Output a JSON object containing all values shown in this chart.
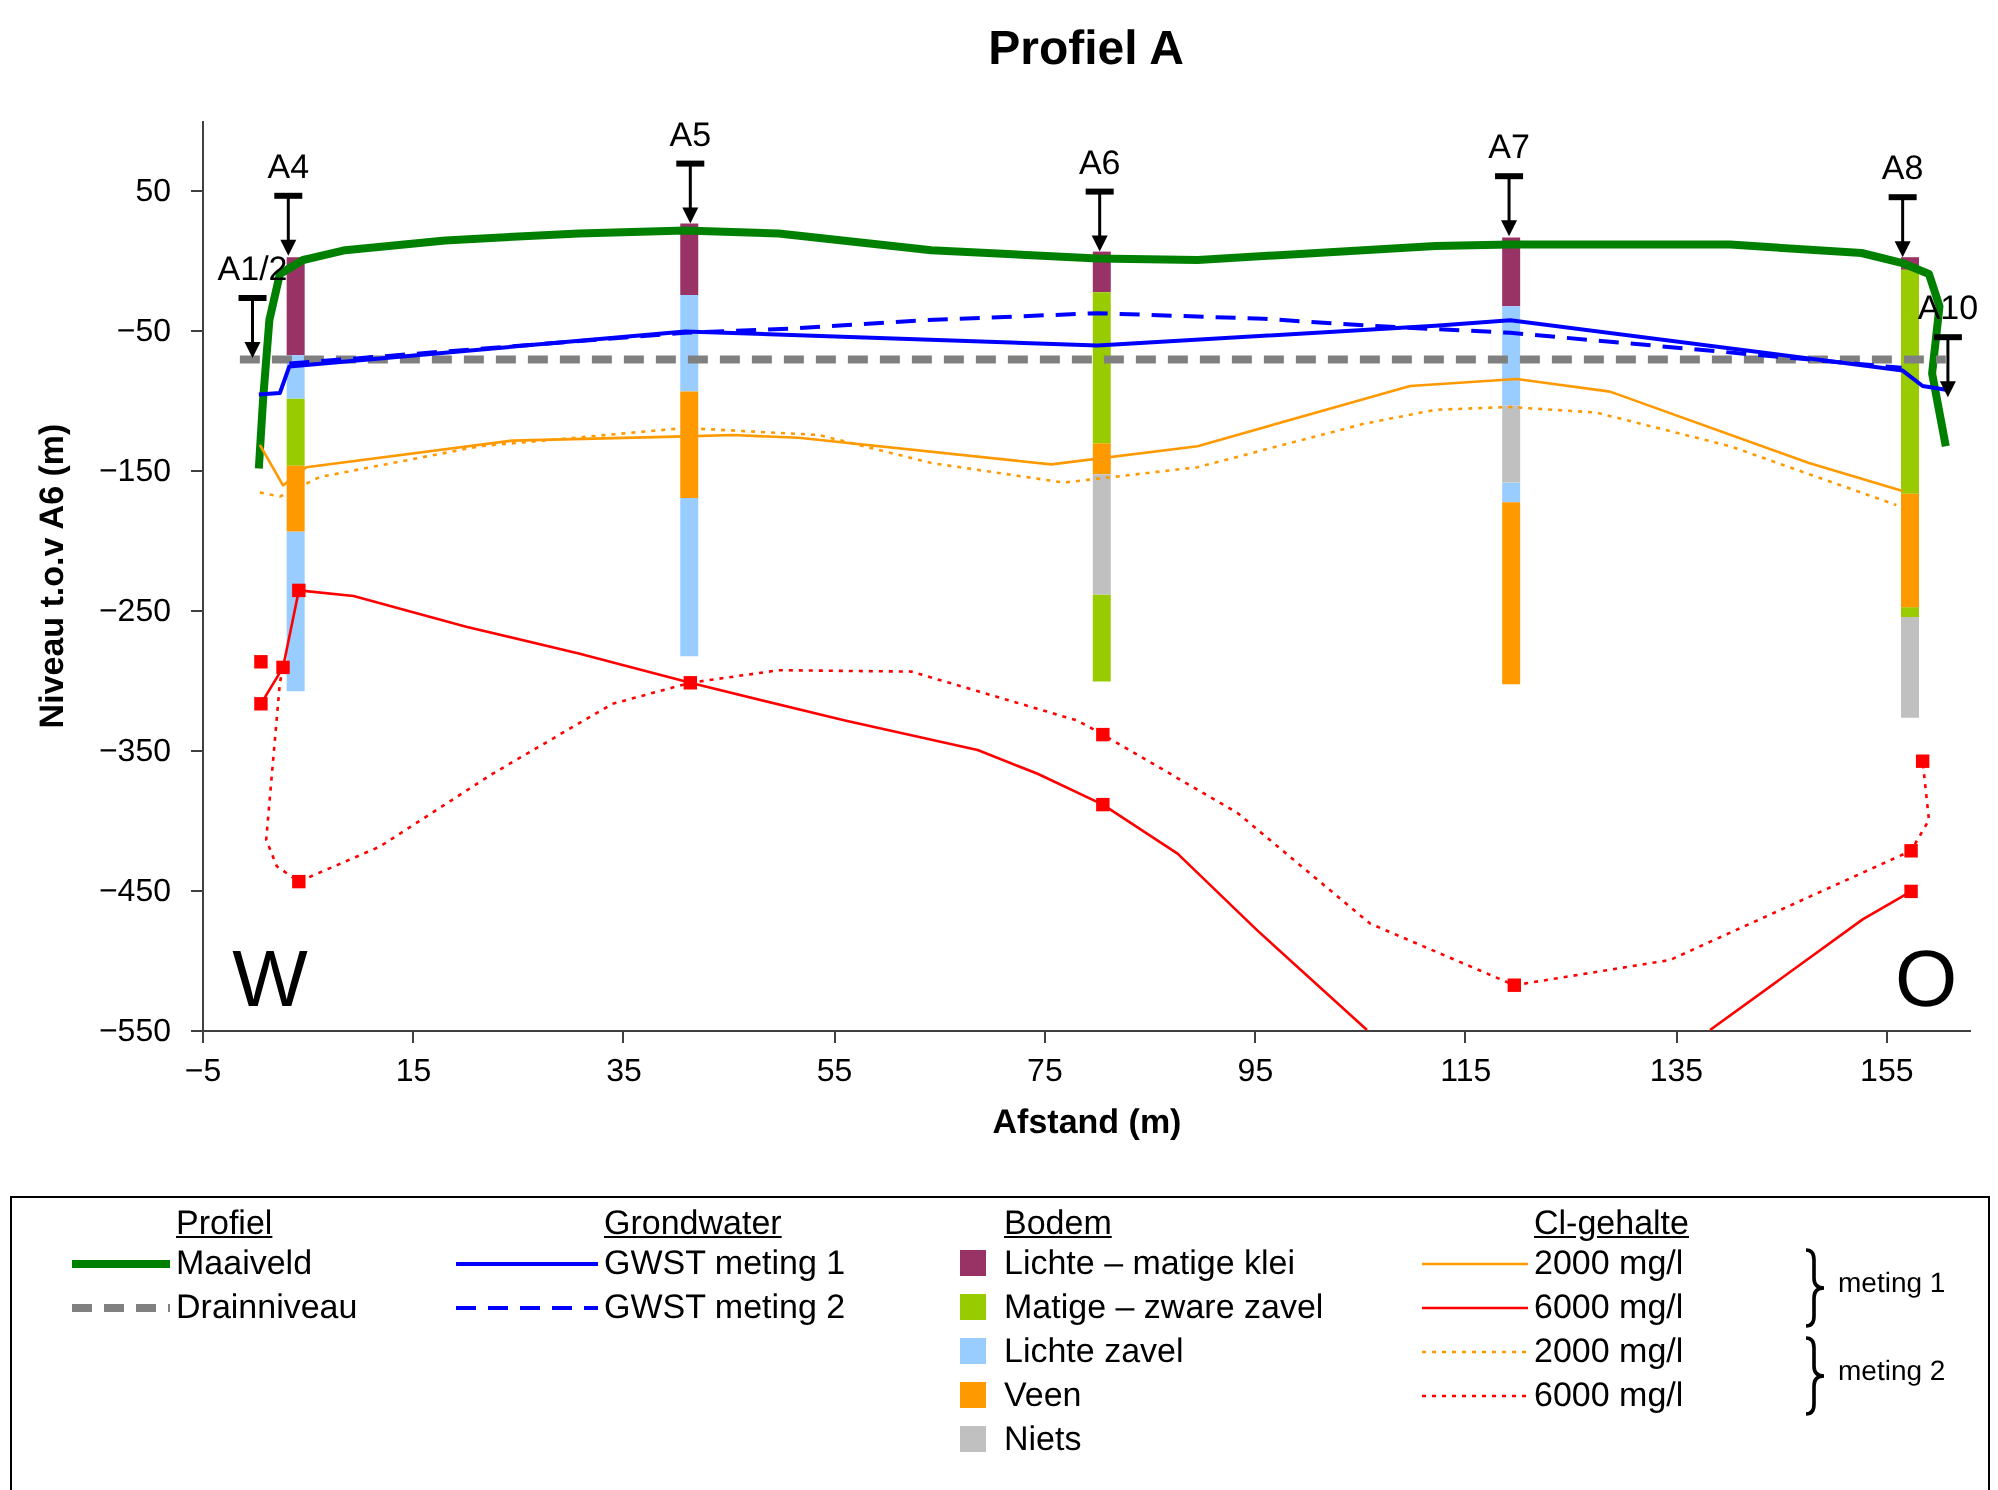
{
  "chart_data": {
    "type": "line",
    "title": "Profiel A",
    "xlabel": "Afstand (m)",
    "ylabel": "Niveau t.o.v A6 (m)",
    "xlim": [
      -5,
      163
    ],
    "xticks": [
      -5,
      15,
      35,
      55,
      75,
      95,
      115,
      135,
      155
    ],
    "ylim": [
      -550,
      100
    ],
    "yticks": [
      50,
      -50,
      -150,
      -250,
      -350,
      -450,
      -550
    ],
    "legend": "bottom",
    "annotations": [
      "W",
      "O",
      "Profiel",
      "Grondwater",
      "Bodem",
      "Cl-gehalte",
      "meting 1",
      "meting 2",
      {
        "text": "A1/2",
        "x": -0.2,
        "y": -70
      },
      {
        "text": "A4",
        "x": 3.2,
        "y": 3
      },
      {
        "text": "A5",
        "x": 41.4,
        "y": 26
      },
      {
        "text": "A6",
        "x": 80.3,
        "y": 6
      },
      {
        "text": "A7",
        "x": 119.2,
        "y": 17
      },
      {
        "text": "A8",
        "x": 156.6,
        "y": 2
      },
      {
        "text": "A10",
        "x": 160.9,
        "y": -98
      }
    ],
    "series": [
      {
        "name": "Maaiveld",
        "color": "#008000",
        "line_style": "solid",
        "x": [
          0.4,
          0.8,
          1.4,
          2.4,
          4.6,
          8.6,
          18.1,
          30.8,
          40.9,
          49.8,
          64.3,
          80.1,
          89.6,
          112.2,
          119.3,
          140.2,
          152.7,
          156.5,
          159.1,
          160.1,
          159.4,
          160.7
        ],
        "values": [
          -149,
          -100,
          -43,
          -10,
          0,
          7,
          14,
          19,
          21,
          19,
          7,
          1,
          0,
          10,
          11,
          11,
          5,
          -2,
          -10,
          -33,
          -81,
          -133
        ]
      },
      {
        "name": "Drainniveau",
        "color": "#808080",
        "line_style": "dashed",
        "x": [
          -1.4,
          160.7
        ],
        "values": [
          -71,
          -71
        ]
      },
      {
        "name": "GWST meting 1",
        "color": "#0000ff",
        "line_style": "solid",
        "x": [
          0.4,
          2.4,
          3.3,
          40.9,
          80.1,
          112.2,
          119.3,
          156.6,
          158.5,
          161
        ],
        "values": [
          -96,
          -95,
          -76,
          -51,
          -61,
          -47,
          -43,
          -79,
          -90,
          -93
        ]
      },
      {
        "name": "GWST meting 2",
        "color": "#0000ff",
        "line_style": "dashed",
        "x": [
          3.3,
          40.9,
          51.1,
          63.6,
          80.1,
          95.9,
          106,
          119.3,
          156.5
        ],
        "values": [
          -74,
          -52,
          -49,
          -43,
          -38,
          -42,
          -47,
          -52,
          -77
        ]
      },
      {
        "name": "Lichte – matige klei",
        "type": "bar",
        "color": "#993366",
        "x": [
          3.9,
          41.3,
          80.5,
          119.4,
          157.3
        ],
        "base": [
          -68,
          -25,
          -23,
          -33,
          -7
        ],
        "values": [
          70,
          51,
          29,
          49,
          9
        ]
      },
      {
        "name": "Matige – zware zavel",
        "type": "bar",
        "color": "#99cc00",
        "x": [
          3.9,
          80.5,
          157.3
        ],
        "base": [
          -147,
          -131,
          -167
        ],
        "values": [
          48,
          108,
          160
        ]
      },
      {
        "type": "bar",
        "color": "#99cc00",
        "x": [
          80.5,
          157.3
        ],
        "base": [
          -301,
          -255
        ],
        "values": [
          62,
          7
        ]
      },
      {
        "name": "Lichte zavel",
        "type": "bar",
        "color": "#99ccff",
        "x": [
          3.9,
          41.3,
          119.4
        ],
        "base": [
          -99,
          -94,
          -104
        ],
        "values": [
          31,
          69,
          71
        ]
      },
      {
        "type": "bar",
        "color": "#99ccff",
        "x": [
          3.9,
          41.3,
          119.4
        ],
        "base": [
          -308,
          -283,
          -173
        ],
        "values": [
          114,
          113,
          14
        ]
      },
      {
        "name": "Veen",
        "type": "bar",
        "color": "#ff9900",
        "x": [
          3.9,
          41.3,
          80.5,
          119.4,
          157.3
        ],
        "base": [
          -194,
          -170,
          -153,
          -303,
          -248
        ],
        "values": [
          47,
          76,
          22,
          130,
          81
        ]
      },
      {
        "name": "Niets",
        "type": "bar",
        "color": "#c0c0c0",
        "x": [
          80.5,
          119.4,
          157.3
        ],
        "base": [
          -239,
          -159,
          -327
        ],
        "values": [
          86,
          55,
          72
        ]
      },
      {
        "name": "2000 mg/l",
        "color": "#ff9900",
        "line_style": "solid",
        "x": [
          0.5,
          2.7,
          4.9,
          24.5,
          40.9,
          45.4,
          51.7,
          75.7,
          89.6,
          109.8,
          119.9,
          128.8,
          147.7,
          156.6
        ],
        "values": [
          -132,
          -161,
          -148,
          -129,
          -126,
          -125,
          -127,
          -146,
          -133,
          -90,
          -85,
          -94,
          -145,
          -165
        ]
      },
      {
        "name": "6000 mg/l",
        "color": "#ff0000",
        "line_style": "solid",
        "x": [
          0.6,
          2.7,
          4.2,
          9.4,
          20.1,
          30.8,
          41.4,
          56.1,
          68.7,
          74.4,
          80.6,
          87.7,
          95.3,
          105.7,
          120,
          138.3,
          152.8,
          157.4
        ],
        "values": [
          -317,
          -291,
          -236,
          -240,
          -262,
          -281,
          -302,
          -329,
          -350,
          -367,
          -389,
          -424,
          -479,
          -550,
          null,
          -550,
          -471,
          -451
        ]
      },
      {
        "name": "2000 mg/l",
        "color": "#ff9900",
        "line_style": "dotted",
        "x": [
          0.5,
          2.4,
          6.2,
          21.4,
          40.9,
          53.6,
          64.3,
          76.9,
          89.6,
          105.4,
          112.2,
          119.3,
          127.5,
          140.2,
          156
        ],
        "values": [
          -166,
          -169,
          -155,
          -133,
          -120,
          -125,
          -145,
          -159,
          -148,
          -117,
          -107,
          -105,
          -109,
          -133,
          -175
        ]
      },
      {
        "name": "6000 mg/l",
        "color": "#ff0000",
        "line_style": "dotted",
        "x": [
          2.7,
          2.4,
          1.1,
          2.1,
          4.2,
          11.9,
          22.6,
          34,
          41.4,
          49.8,
          62.4,
          78.2,
          80.6,
          93.4,
          106,
          119.7,
          134.5,
          147.1,
          157.4,
          159.1,
          158.5
        ],
        "values": [
          -291,
          -302,
          -414,
          -433,
          -444,
          -419,
          -367,
          -317,
          -302,
          -293,
          -294,
          -329,
          -339,
          -395,
          -474,
          -518,
          -500,
          -457,
          -422,
          -400,
          -358
        ]
      },
      {
        "type": "scatter",
        "color": "#ff0000",
        "marker": "square",
        "x": [
          0.6,
          0.6,
          2.7,
          4.2,
          4.2,
          41.4,
          80.6,
          80.6,
          119.7,
          157.4,
          157.4,
          158.5
        ],
        "values": [
          -317,
          -287,
          -291,
          -236,
          -444,
          -302,
          -389,
          -339,
          -518,
          -451,
          -422,
          -358
        ]
      }
    ]
  }
}
